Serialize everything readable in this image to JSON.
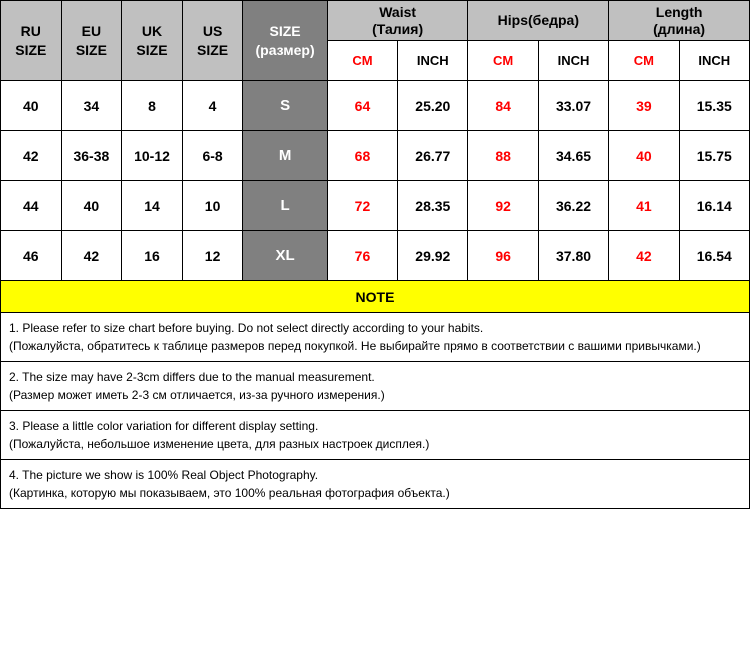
{
  "headers": {
    "ru": "RU\nSIZE",
    "eu": "EU\nSIZE",
    "uk": "UK\nSIZE",
    "us": "US\nSIZE",
    "size": "SIZE\n(размер)",
    "waist": "Waist\n(Талия)",
    "hips": "Hips(бедра)",
    "length": "Length\n(длина)",
    "cm": "CM",
    "inch": "INCH"
  },
  "rows": [
    {
      "ru": "40",
      "eu": "34",
      "uk": "8",
      "us": "4",
      "size": "S",
      "waist_cm": "64",
      "waist_in": "25.20",
      "hips_cm": "84",
      "hips_in": "33.07",
      "len_cm": "39",
      "len_in": "15.35"
    },
    {
      "ru": "42",
      "eu": "36-38",
      "uk": "10-12",
      "us": "6-8",
      "size": "M",
      "waist_cm": "68",
      "waist_in": "26.77",
      "hips_cm": "88",
      "hips_in": "34.65",
      "len_cm": "40",
      "len_in": "15.75"
    },
    {
      "ru": "44",
      "eu": "40",
      "uk": "14",
      "us": "10",
      "size": "L",
      "waist_cm": "72",
      "waist_in": "28.35",
      "hips_cm": "92",
      "hips_in": "36.22",
      "len_cm": "41",
      "len_in": "16.14"
    },
    {
      "ru": "46",
      "eu": "42",
      "uk": "16",
      "us": "12",
      "size": "XL",
      "waist_cm": "76",
      "waist_in": "29.92",
      "hips_cm": "96",
      "hips_in": "37.80",
      "len_cm": "42",
      "len_in": "16.54"
    }
  ],
  "note_title": "NOTE",
  "notes": [
    "1. Please refer to size chart before buying. Do not select directly according to your habits.\n(Пожалуйста, обратитесь к таблице размеров перед покупкой. Не выбирайте прямо в соответствии с вашими привычками.)",
    "2. The size may have 2-3cm differs due to the manual measurement.\n(Размер может иметь 2-3 см отличается, из-за ручного измерения.)",
    "3. Please a little color variation for different display setting.\n(Пожалуйста, небольшое изменение цвета, для разных настроек дисплея.)",
    "4. The picture we show is 100% Real Object Photography.\n(Картинка, которую мы показываем, это 100% реальная фотография объекта.)"
  ],
  "colors": {
    "header_gray": "#c0c0c0",
    "size_gray": "#808080",
    "red": "#ff0000",
    "black": "#000000",
    "white": "#ffffff",
    "yellow": "#ffff00"
  }
}
